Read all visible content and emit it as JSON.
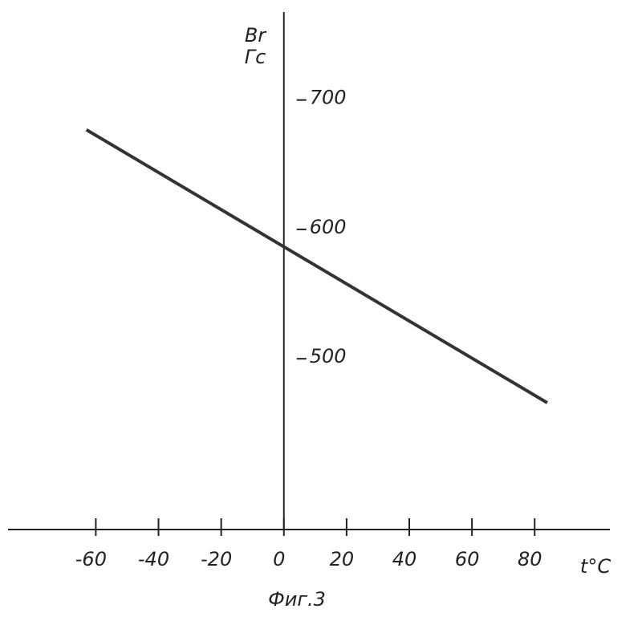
{
  "chart_data": {
    "type": "line",
    "x_label": "t°C",
    "y_label": "Br",
    "y_unit": "Гс",
    "caption": "Фиг.3",
    "x": [
      -63,
      84
    ],
    "series": [
      {
        "color": "#333333",
        "values": [
          677,
          466
        ]
      }
    ],
    "xlim": [
      -88,
      104
    ],
    "ylim": [
      368,
      768
    ],
    "xticks": [
      -60,
      -40,
      -20,
      0,
      20,
      40,
      60,
      80
    ],
    "yticks": [
      500,
      600,
      700
    ],
    "grid": false
  }
}
